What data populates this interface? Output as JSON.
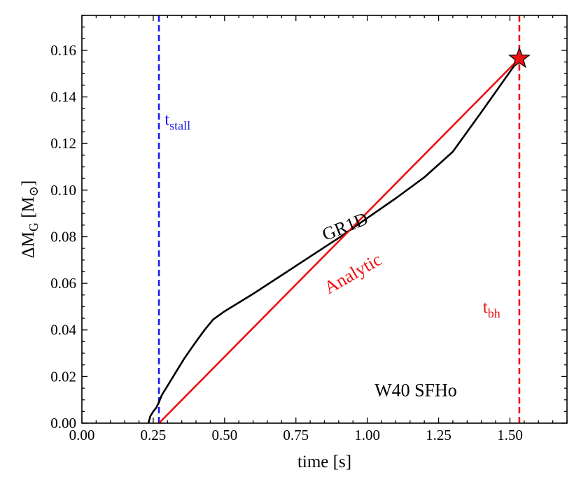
{
  "chart_data": {
    "type": "line",
    "title": "",
    "xlabel": "time [s]",
    "ylabel": {
      "main": "ΔM",
      "sub": "G",
      "unit_open": " [M",
      "unit_symbol": "⊙",
      "unit_close": "]"
    },
    "xlim": [
      0.0,
      1.7
    ],
    "ylim": [
      0.0,
      0.175
    ],
    "xticks": [
      0.0,
      0.25,
      0.5,
      0.75,
      1.0,
      1.25,
      1.5
    ],
    "xtick_labels": [
      "0.00",
      "0.25",
      "0.50",
      "0.75",
      "1.00",
      "1.25",
      "1.50"
    ],
    "yticks": [
      0.0,
      0.02,
      0.04,
      0.06,
      0.08,
      0.1,
      0.12,
      0.14,
      0.16
    ],
    "ytick_labels": [
      "0.00",
      "0.02",
      "0.04",
      "0.06",
      "0.08",
      "0.10",
      "0.12",
      "0.14",
      "0.16"
    ],
    "series": [
      {
        "name": "GR1D",
        "color": "#000000",
        "x": [
          0.233,
          0.24,
          0.25,
          0.26,
          0.27,
          0.28,
          0.3,
          0.33,
          0.36,
          0.4,
          0.43,
          0.46,
          0.5,
          0.6,
          0.7,
          0.8,
          0.9,
          1.0,
          1.1,
          1.2,
          1.3,
          1.4,
          1.533
        ],
        "y": [
          0.0,
          0.003,
          0.005,
          0.0065,
          0.009,
          0.012,
          0.016,
          0.022,
          0.028,
          0.035,
          0.04,
          0.0445,
          0.048,
          0.0555,
          0.0635,
          0.0715,
          0.0795,
          0.088,
          0.0965,
          0.1055,
          0.1165,
          0.1335,
          0.1565
        ]
      },
      {
        "name": "Analytic",
        "color": "#ee1111",
        "x": [
          0.27,
          1.533
        ],
        "y": [
          0.0,
          0.1565
        ]
      }
    ],
    "vlines": [
      {
        "name": "t_stall",
        "x": 0.27,
        "color": "#1a1aee",
        "style": "dashed"
      },
      {
        "name": "t_bh",
        "x": 1.533,
        "color": "#ee1111",
        "style": "dashed"
      }
    ],
    "marker": {
      "shape": "star",
      "x": 1.533,
      "y": 0.1565,
      "color": "#ee1111"
    },
    "annotations": [
      {
        "key": "gr1d",
        "text": "GR1D",
        "x": 0.93,
        "y": 0.082,
        "rotation_deg": -22,
        "color": "#000000"
      },
      {
        "key": "analytic",
        "text": "Analytic",
        "x": 0.96,
        "y": 0.062,
        "rotation_deg": -30,
        "color": "#ee1111"
      },
      {
        "key": "tstall",
        "text": "t",
        "sub": "stall",
        "x": 0.29,
        "y": 0.128,
        "color": "#1a1aee"
      },
      {
        "key": "tbh",
        "text": "t",
        "sub": "bh",
        "x": 1.405,
        "y": 0.0475,
        "color": "#ee1111"
      },
      {
        "key": "model",
        "text": "W40 SFHo",
        "x": 1.17,
        "y": 0.0115,
        "color": "#000000"
      }
    ]
  }
}
